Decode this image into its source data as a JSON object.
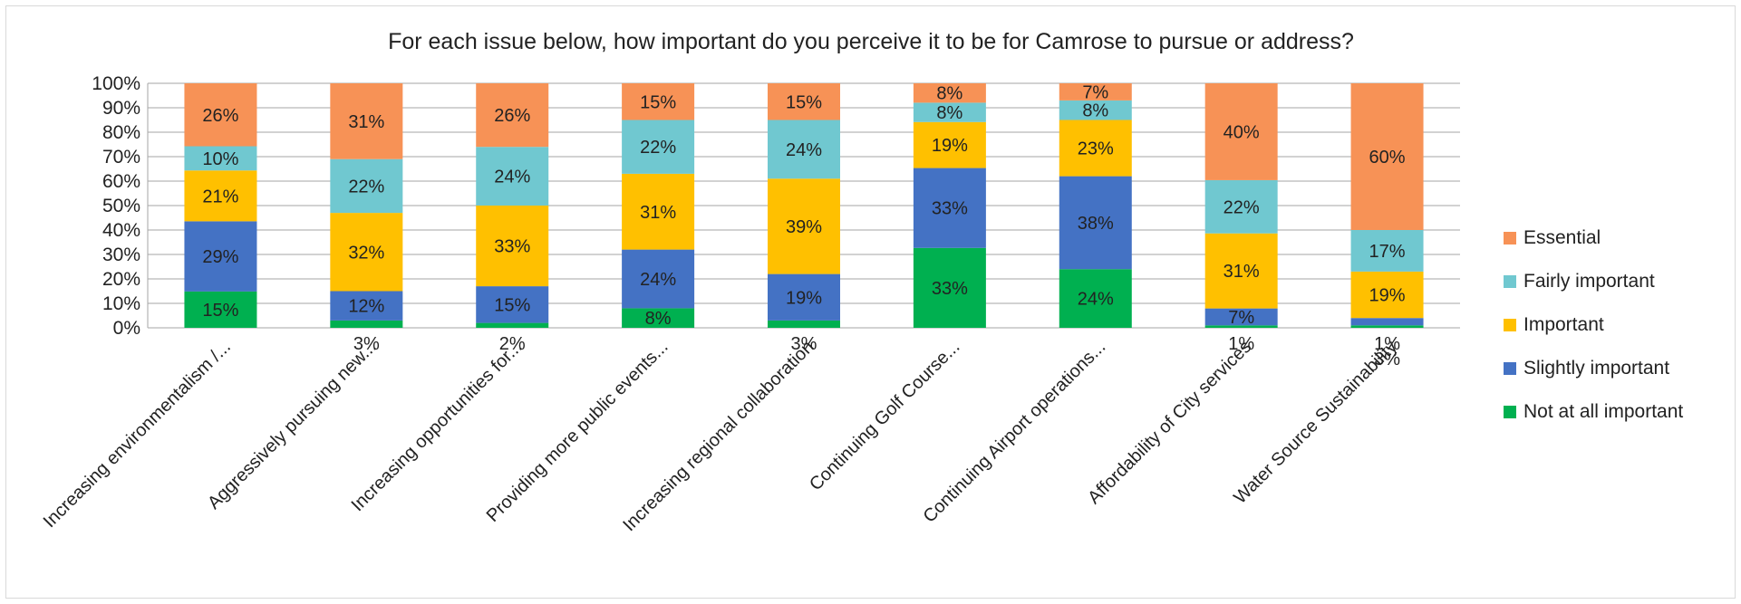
{
  "chart_data": {
    "type": "bar",
    "stacked": true,
    "normalized": true,
    "title": "For each issue below, how important do you perceive it to be for Camrose to pursue or address?",
    "xlabel": "",
    "ylabel": "",
    "ylim": [
      0,
      100
    ],
    "yticks": [
      "0%",
      "10%",
      "20%",
      "30%",
      "40%",
      "50%",
      "60%",
      "70%",
      "80%",
      "90%",
      "100%"
    ],
    "grid": true,
    "legend_position": "right",
    "categories": [
      "Increasing environmentalism /...",
      "Aggressively pursuing new...",
      "Increasing opportunities for...",
      "Providing more public events...",
      "Increasing regional collaboration",
      "Continuing Golf Course...",
      "Continuing Airport operations...",
      "Affordability of City services",
      "Water Source Sustainability"
    ],
    "series": [
      {
        "name": "Not at all important",
        "color": "#00b050",
        "values": [
          15,
          3,
          2,
          8,
          3,
          33,
          24,
          1,
          1
        ],
        "labels": [
          "15%",
          "3%",
          "2%",
          "8%",
          "3%",
          "33%",
          "24%",
          "1%",
          "1%"
        ]
      },
      {
        "name": "Slightly important",
        "color": "#4472c4",
        "values": [
          29,
          12,
          15,
          24,
          19,
          33,
          38,
          7,
          3
        ],
        "labels": [
          "29%",
          "12%",
          "15%",
          "24%",
          "19%",
          "33%",
          "38%",
          "7%",
          "3%"
        ]
      },
      {
        "name": "Important",
        "color": "#ffc000",
        "values": [
          21,
          32,
          33,
          31,
          39,
          19,
          23,
          31,
          19
        ],
        "labels": [
          "21%",
          "32%",
          "33%",
          "31%",
          "39%",
          "19%",
          "23%",
          "31%",
          "19%"
        ]
      },
      {
        "name": "Fairly important",
        "color": "#70c8d0",
        "values": [
          10,
          22,
          24,
          22,
          24,
          8,
          8,
          22,
          17
        ],
        "labels": [
          "10%",
          "22%",
          "24%",
          "22%",
          "24%",
          "8%",
          "8%",
          "22%",
          "17%"
        ]
      },
      {
        "name": "Essential",
        "color": "#f79256",
        "values": [
          26,
          31,
          26,
          15,
          15,
          8,
          7,
          40,
          60
        ],
        "labels": [
          "26%",
          "31%",
          "26%",
          "15%",
          "15%",
          "8%",
          "7%",
          "40%",
          "60%"
        ]
      }
    ]
  }
}
